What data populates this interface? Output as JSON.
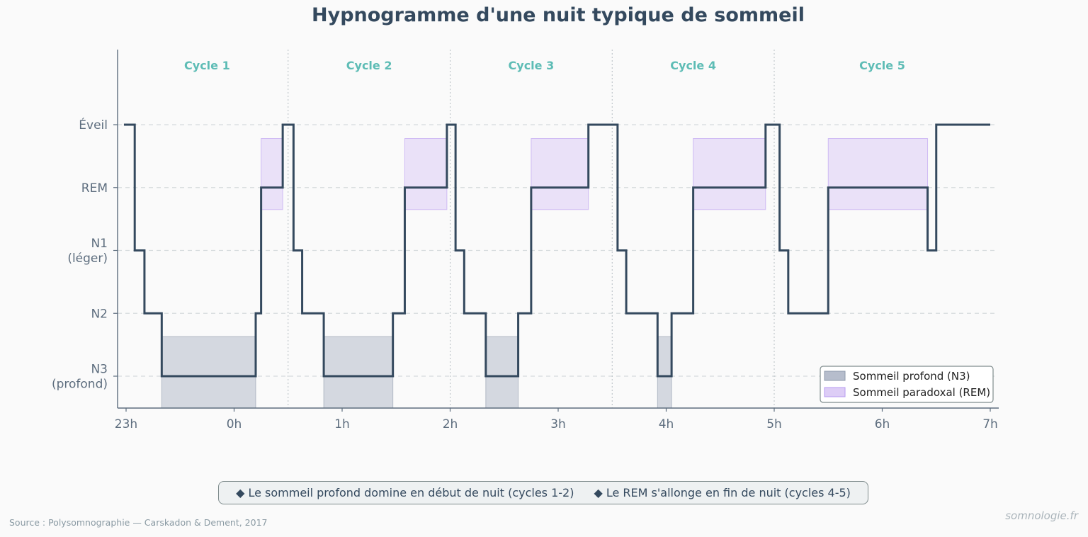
{
  "chart_data": {
    "type": "line",
    "title": "Hypnogramme d'une nuit typique de sommeil",
    "x_unit": "hours",
    "xlim": [
      23,
      31
    ],
    "x_ticks": [
      {
        "value": 23,
        "label": "23h"
      },
      {
        "value": 24,
        "label": "0h"
      },
      {
        "value": 25,
        "label": "1h"
      },
      {
        "value": 26,
        "label": "2h"
      },
      {
        "value": 27,
        "label": "3h"
      },
      {
        "value": 28,
        "label": "4h"
      },
      {
        "value": 29,
        "label": "5h"
      },
      {
        "value": 30,
        "label": "6h"
      },
      {
        "value": 31,
        "label": "7h"
      }
    ],
    "y_levels": [
      {
        "value": 4,
        "label": [
          "Éveil"
        ]
      },
      {
        "value": 3,
        "label": [
          "REM"
        ]
      },
      {
        "value": 2,
        "label": [
          "N1",
          "(léger)"
        ]
      },
      {
        "value": 1,
        "label": [
          "N2"
        ]
      },
      {
        "value": 0,
        "label": [
          "N3",
          "(profond)"
        ]
      }
    ],
    "ylim": [
      -0.5,
      5.2
    ],
    "grid": "horizontal dashed",
    "series": [
      {
        "kind": "step",
        "points": [
          [
            22.98,
            4
          ],
          [
            23.08,
            2
          ],
          [
            23.17,
            1
          ],
          [
            23.33,
            0
          ],
          [
            24.2,
            1
          ],
          [
            24.25,
            3
          ],
          [
            24.45,
            4
          ],
          [
            24.55,
            2
          ],
          [
            24.63,
            1
          ],
          [
            24.83,
            0
          ],
          [
            25.47,
            1
          ],
          [
            25.58,
            3
          ],
          [
            25.97,
            4
          ],
          [
            26.05,
            2
          ],
          [
            26.13,
            1
          ],
          [
            26.33,
            0
          ],
          [
            26.63,
            1
          ],
          [
            26.75,
            3
          ],
          [
            27.28,
            4
          ],
          [
            27.55,
            2
          ],
          [
            27.63,
            1
          ],
          [
            27.92,
            0
          ],
          [
            28.05,
            1
          ],
          [
            28.25,
            3
          ],
          [
            28.92,
            4
          ],
          [
            29.05,
            2
          ],
          [
            29.13,
            1
          ],
          [
            29.5,
            3
          ],
          [
            30.42,
            2
          ],
          [
            30.5,
            4
          ],
          [
            31.0,
            4
          ]
        ]
      }
    ],
    "shaded_regions": [
      {
        "type": "N3",
        "from": 23.33,
        "to": 24.2
      },
      {
        "type": "N3",
        "from": 24.83,
        "to": 25.47
      },
      {
        "type": "N3",
        "from": 26.33,
        "to": 26.63
      },
      {
        "type": "N3",
        "from": 27.92,
        "to": 28.05
      },
      {
        "type": "REM",
        "from": 24.25,
        "to": 24.45
      },
      {
        "type": "REM",
        "from": 25.58,
        "to": 25.97
      },
      {
        "type": "REM",
        "from": 26.75,
        "to": 27.28
      },
      {
        "type": "REM",
        "from": 28.25,
        "to": 28.92
      },
      {
        "type": "REM",
        "from": 29.5,
        "to": 30.42
      }
    ],
    "cycle_boundaries": [
      24.5,
      26.0,
      27.5,
      29.0
    ],
    "cycles": [
      {
        "label": "Cycle 1",
        "center": 23.75
      },
      {
        "label": "Cycle 2",
        "center": 25.25
      },
      {
        "label": "Cycle 3",
        "center": 26.75
      },
      {
        "label": "Cycle 4",
        "center": 28.25
      },
      {
        "label": "Cycle 5",
        "center": 30.0
      }
    ],
    "legend": {
      "position": "bottom-right",
      "entries": [
        {
          "label": "Sommeil profond (N3)",
          "type": "N3"
        },
        {
          "label": "Sommeil paradoxal (REM)",
          "type": "REM"
        }
      ]
    }
  },
  "colors": {
    "line": "#34495e",
    "n3_fill": "#aeb6c6",
    "rem_fill": "#d9c8f5",
    "cycle_label": "#5dbcb5",
    "axis": "#5d6d7e"
  },
  "notes": [
    "◆ Le sommeil profond domine en début de nuit (cycles 1-2)",
    "◆ Le REM s'allonge en fin de nuit (cycles 4-5)"
  ],
  "source": "Source : Polysomnographie — Carskadon & Dement, 2017",
  "brand": "somnologie.fr"
}
